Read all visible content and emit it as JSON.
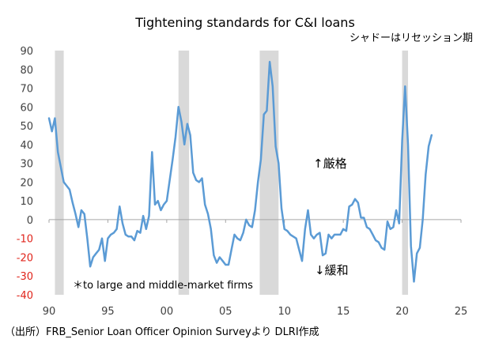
{
  "chart_data": {
    "type": "line",
    "title": "Tightening standards for C&I loans",
    "shade_note": "シャドーはリセッション期",
    "xlabel": "",
    "ylabel": "",
    "xlim": [
      1990,
      2025
    ],
    "ylim": [
      -40,
      90
    ],
    "x_ticks": [
      {
        "value": 1990,
        "label": "90"
      },
      {
        "value": 1995,
        "label": "95"
      },
      {
        "value": 2000,
        "label": "00"
      },
      {
        "value": 2005,
        "label": "05"
      },
      {
        "value": 2010,
        "label": "10"
      },
      {
        "value": 2015,
        "label": "15"
      },
      {
        "value": 2020,
        "label": "20"
      },
      {
        "value": 2025,
        "label": "25"
      }
    ],
    "y_ticks": [
      90,
      80,
      70,
      60,
      50,
      40,
      30,
      20,
      10,
      0,
      -10,
      -20,
      -30,
      -40
    ],
    "negative_tick_color": "#e0241b",
    "line_color": "#5b9bd5",
    "shade_color": "#d9d9d9",
    "recessions": [
      {
        "start": 1990.5,
        "end": 1991.25
      },
      {
        "start": 2001.0,
        "end": 2001.9
      },
      {
        "start": 2007.9,
        "end": 2009.5
      },
      {
        "start": 2020.0,
        "end": 2020.5
      }
    ],
    "series": [
      {
        "values": [
          [
            1990.0,
            54
          ],
          [
            1990.25,
            47
          ],
          [
            1990.5,
            54
          ],
          [
            1990.75,
            36
          ],
          [
            1991.25,
            20
          ],
          [
            1991.5,
            18
          ],
          [
            1991.75,
            16
          ],
          [
            1992.0,
            9
          ],
          [
            1992.25,
            3
          ],
          [
            1992.5,
            -4
          ],
          [
            1992.75,
            5
          ],
          [
            1993.0,
            3
          ],
          [
            1993.25,
            -10
          ],
          [
            1993.5,
            -25
          ],
          [
            1993.75,
            -20
          ],
          [
            1994.0,
            -18
          ],
          [
            1994.25,
            -16
          ],
          [
            1994.5,
            -10
          ],
          [
            1994.75,
            -22
          ],
          [
            1995.0,
            -10
          ],
          [
            1995.25,
            -8
          ],
          [
            1995.5,
            -7
          ],
          [
            1995.75,
            -5
          ],
          [
            1996.0,
            7
          ],
          [
            1996.25,
            -2
          ],
          [
            1996.5,
            -8
          ],
          [
            1996.75,
            -9
          ],
          [
            1997.0,
            -9
          ],
          [
            1997.25,
            -11
          ],
          [
            1997.5,
            -6
          ],
          [
            1997.75,
            -7
          ],
          [
            1998.0,
            2
          ],
          [
            1998.25,
            -5
          ],
          [
            1998.5,
            2
          ],
          [
            1998.75,
            36
          ],
          [
            1999.0,
            8
          ],
          [
            1999.25,
            10
          ],
          [
            1999.5,
            5
          ],
          [
            1999.75,
            8
          ],
          [
            2000.0,
            10
          ],
          [
            2000.5,
            32
          ],
          [
            2000.75,
            44
          ],
          [
            2001.0,
            60
          ],
          [
            2001.25,
            52
          ],
          [
            2001.5,
            40
          ],
          [
            2001.75,
            51
          ],
          [
            2002.0,
            45
          ],
          [
            2002.25,
            25
          ],
          [
            2002.5,
            21
          ],
          [
            2002.75,
            20
          ],
          [
            2003.0,
            22
          ],
          [
            2003.25,
            8
          ],
          [
            2003.5,
            3
          ],
          [
            2003.75,
            -5
          ],
          [
            2004.0,
            -19
          ],
          [
            2004.25,
            -23
          ],
          [
            2004.5,
            -20
          ],
          [
            2004.75,
            -22
          ],
          [
            2005.0,
            -24
          ],
          [
            2005.25,
            -24
          ],
          [
            2005.5,
            -16
          ],
          [
            2005.75,
            -8
          ],
          [
            2006.0,
            -10
          ],
          [
            2006.25,
            -11
          ],
          [
            2006.5,
            -7
          ],
          [
            2006.75,
            0
          ],
          [
            2007.0,
            -3
          ],
          [
            2007.25,
            -4
          ],
          [
            2007.5,
            5
          ],
          [
            2007.75,
            20
          ],
          [
            2008.0,
            32
          ],
          [
            2008.25,
            56
          ],
          [
            2008.5,
            58
          ],
          [
            2008.75,
            84
          ],
          [
            2009.0,
            71
          ],
          [
            2009.25,
            39
          ],
          [
            2009.5,
            30
          ],
          [
            2009.75,
            6
          ],
          [
            2010.0,
            -5
          ],
          [
            2010.25,
            -6
          ],
          [
            2010.5,
            -8
          ],
          [
            2010.75,
            -9
          ],
          [
            2011.0,
            -10
          ],
          [
            2011.25,
            -16
          ],
          [
            2011.5,
            -22
          ],
          [
            2011.75,
            -5
          ],
          [
            2012.0,
            5
          ],
          [
            2012.25,
            -8
          ],
          [
            2012.5,
            -10
          ],
          [
            2012.75,
            -8
          ],
          [
            2013.0,
            -7
          ],
          [
            2013.25,
            -19
          ],
          [
            2013.5,
            -18
          ],
          [
            2013.75,
            -8
          ],
          [
            2014.0,
            -10
          ],
          [
            2014.25,
            -8
          ],
          [
            2014.5,
            -8
          ],
          [
            2014.75,
            -8
          ],
          [
            2015.0,
            -5
          ],
          [
            2015.25,
            -6
          ],
          [
            2015.5,
            7
          ],
          [
            2015.75,
            8
          ],
          [
            2016.0,
            11
          ],
          [
            2016.25,
            9
          ],
          [
            2016.5,
            1
          ],
          [
            2016.75,
            1
          ],
          [
            2017.0,
            -4
          ],
          [
            2017.25,
            -5
          ],
          [
            2017.5,
            -8
          ],
          [
            2017.75,
            -11
          ],
          [
            2018.0,
            -12
          ],
          [
            2018.25,
            -15
          ],
          [
            2018.5,
            -16
          ],
          [
            2018.75,
            -1
          ],
          [
            2019.0,
            -5
          ],
          [
            2019.25,
            -4
          ],
          [
            2019.5,
            5
          ],
          [
            2019.75,
            -2
          ],
          [
            2020.0,
            42
          ],
          [
            2020.25,
            71
          ],
          [
            2020.5,
            40
          ],
          [
            2020.75,
            -14
          ],
          [
            2021.0,
            -33
          ],
          [
            2021.25,
            -18
          ],
          [
            2021.5,
            -15
          ],
          [
            2021.75,
            0
          ],
          [
            2022.0,
            24
          ],
          [
            2022.25,
            39
          ],
          [
            2022.5,
            45
          ]
        ]
      }
    ],
    "annotations": {
      "note": "＊to large and middle-market firms",
      "tighten": "↑厳格",
      "ease": "↓緩和"
    },
    "source": "（出所）FRB_Senior Loan Officer Opinion Surveyより DLRI作成"
  }
}
